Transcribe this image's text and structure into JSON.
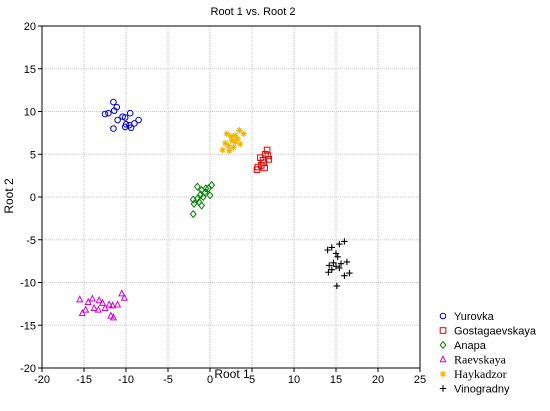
{
  "chart_data": {
    "type": "scatter",
    "title": "Root 1 vs. Root 2",
    "xlabel": "Root 1",
    "ylabel": "Root 2",
    "xlim": [
      -20,
      25
    ],
    "ylim": [
      -20,
      20
    ],
    "xticks": [
      -20,
      -15,
      -10,
      -5,
      0,
      5,
      10,
      15,
      20,
      25
    ],
    "yticks": [
      -20,
      -15,
      -10,
      -5,
      0,
      5,
      10,
      15,
      20
    ],
    "grid": true,
    "legend_position": "bottom-right-outside",
    "series": [
      {
        "name": "Yurovka",
        "marker": "circle",
        "color": "#0000c8",
        "points": [
          [
            -11.5,
            11.1
          ],
          [
            -11.1,
            10.5
          ],
          [
            -11.4,
            10.1
          ],
          [
            -12.5,
            9.7
          ],
          [
            -12.1,
            9.8
          ],
          [
            -10.4,
            9.4
          ],
          [
            -10.1,
            9.3
          ],
          [
            -9.5,
            9.8
          ],
          [
            -11.0,
            9.0
          ],
          [
            -8.5,
            9.0
          ],
          [
            -9.0,
            8.6
          ],
          [
            -10.0,
            8.5
          ],
          [
            -9.6,
            8.4
          ],
          [
            -10.1,
            8.2
          ],
          [
            -11.5,
            8.0
          ],
          [
            -9.4,
            8.1
          ]
        ]
      },
      {
        "name": "Gostagaevskaya",
        "marker": "square",
        "color": "#e00000",
        "points": [
          [
            6.8,
            5.5
          ],
          [
            6.6,
            5.0
          ],
          [
            6.0,
            4.6
          ],
          [
            7.0,
            4.4
          ],
          [
            6.4,
            4.0
          ],
          [
            6.1,
            3.7
          ],
          [
            5.7,
            3.5
          ],
          [
            6.5,
            3.4
          ],
          [
            5.6,
            3.2
          ],
          [
            6.9,
            4.8
          ],
          [
            6.3,
            4.3
          ]
        ]
      },
      {
        "name": "Anapa",
        "marker": "diamond",
        "color": "#008000",
        "points": [
          [
            -1.5,
            1.2
          ],
          [
            -1.0,
            0.8
          ],
          [
            0.2,
            1.4
          ],
          [
            -0.2,
            1.0
          ],
          [
            -0.6,
            0.5
          ],
          [
            -1.1,
            0.3
          ],
          [
            0.0,
            0.2
          ],
          [
            -0.8,
            0.0
          ],
          [
            -1.5,
            -0.2
          ],
          [
            -2.0,
            -0.3
          ],
          [
            -1.3,
            -0.6
          ],
          [
            -1.9,
            -0.8
          ],
          [
            -1.0,
            -1.0
          ],
          [
            -2.0,
            -2.0
          ],
          [
            -0.5,
            1.0
          ]
        ]
      },
      {
        "name": "Raevskaya",
        "marker": "triangle",
        "color": "#d000d0",
        "points": [
          [
            -15.5,
            -12.0
          ],
          [
            -14.5,
            -12.3
          ],
          [
            -14.0,
            -11.9
          ],
          [
            -13.2,
            -12.1
          ],
          [
            -10.5,
            -11.3
          ],
          [
            -10.2,
            -11.8
          ],
          [
            -12.0,
            -12.6
          ],
          [
            -12.5,
            -13.0
          ],
          [
            -14.8,
            -13.2
          ],
          [
            -13.8,
            -13.0
          ],
          [
            -13.3,
            -13.2
          ],
          [
            -11.6,
            -12.7
          ],
          [
            -11.0,
            -12.6
          ],
          [
            -12.8,
            -12.4
          ],
          [
            -15.2,
            -13.6
          ],
          [
            -11.8,
            -13.9
          ],
          [
            -11.5,
            -14.1
          ]
        ]
      },
      {
        "name": "Haykadzor",
        "marker": "asterisk",
        "color": "#f0b400",
        "points": [
          [
            3.5,
            7.8
          ],
          [
            2.0,
            7.4
          ],
          [
            2.5,
            7.1
          ],
          [
            3.0,
            7.2
          ],
          [
            4.0,
            7.4
          ],
          [
            3.3,
            6.8
          ],
          [
            2.6,
            6.6
          ],
          [
            1.8,
            6.3
          ],
          [
            3.6,
            6.2
          ],
          [
            2.2,
            6.0
          ],
          [
            2.8,
            5.8
          ],
          [
            1.5,
            5.5
          ],
          [
            2.3,
            5.4
          ],
          [
            3.0,
            6.4
          ]
        ]
      },
      {
        "name": "Vinogradny",
        "marker": "plus",
        "color": "#000000",
        "points": [
          [
            16.0,
            -5.2
          ],
          [
            15.4,
            -5.5
          ],
          [
            14.5,
            -5.9
          ],
          [
            14.0,
            -6.2
          ],
          [
            15.0,
            -6.6
          ],
          [
            15.2,
            -7.0
          ],
          [
            16.3,
            -7.6
          ],
          [
            15.6,
            -7.8
          ],
          [
            14.2,
            -8.0
          ],
          [
            15.0,
            -8.1
          ],
          [
            15.4,
            -8.3
          ],
          [
            14.5,
            -8.5
          ],
          [
            16.6,
            -8.9
          ],
          [
            14.1,
            -8.8
          ],
          [
            16.0,
            -9.2
          ],
          [
            15.1,
            -10.4
          ],
          [
            14.7,
            -7.7
          ]
        ]
      }
    ]
  }
}
